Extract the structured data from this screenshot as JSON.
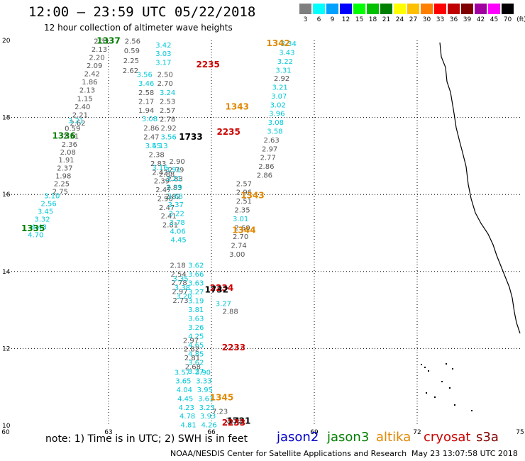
{
  "header": {
    "title": "12:00 – 23:59 UTC 05/22/2018",
    "subtitle": "12 hour collection of altimeter wave heights"
  },
  "color_scale": {
    "unit_label": "(ft)",
    "bins": [
      {
        "label": "3",
        "color": "#7f7f7f"
      },
      {
        "label": "6",
        "color": "#00ffff"
      },
      {
        "label": "9",
        "color": "#00a0ff"
      },
      {
        "label": "12",
        "color": "#0000ff"
      },
      {
        "label": "15",
        "color": "#00ff00"
      },
      {
        "label": "18",
        "color": "#00c000"
      },
      {
        "label": "21",
        "color": "#007f00"
      },
      {
        "label": "24",
        "color": "#ffff00"
      },
      {
        "label": "27",
        "color": "#ffc000"
      },
      {
        "label": "30",
        "color": "#ff8000"
      },
      {
        "label": "33",
        "color": "#ff0000"
      },
      {
        "label": "36",
        "color": "#c00000"
      },
      {
        "label": "39",
        "color": "#800000"
      },
      {
        "label": "42",
        "color": "#a000a0"
      },
      {
        "label": "45",
        "color": "#ff00ff"
      },
      {
        "label": "70",
        "color": "#000000"
      }
    ]
  },
  "map": {
    "lon_ticks": [
      "60",
      "63",
      "66",
      "69",
      "72",
      "75"
    ],
    "lat_ticks": [
      "20",
      "18",
      "16",
      "14",
      "12",
      "10"
    ],
    "lon_range": [
      60,
      75
    ],
    "lat_range": [
      10,
      20
    ],
    "colors": {
      "gray": "#555555",
      "cyan": "#00c8d8",
      "green": "#007f00",
      "red": "#cc0000",
      "orange": "#e08800",
      "black": "#000000",
      "blue": "#0000cc"
    },
    "labels": [
      {
        "text": "1337",
        "lon": 63.0,
        "lat": 19.92,
        "color": "green"
      },
      {
        "text": "1342",
        "lon": 67.95,
        "lat": 19.85,
        "color": "orange"
      },
      {
        "text": "2235",
        "lon": 65.9,
        "lat": 19.3,
        "color": "red"
      },
      {
        "text": "1343",
        "lon": 66.75,
        "lat": 18.2,
        "color": "orange"
      },
      {
        "text": "1336",
        "lon": 61.7,
        "lat": 17.45,
        "color": "green"
      },
      {
        "text": "2235",
        "lon": 66.5,
        "lat": 17.55,
        "color": "red"
      },
      {
        "text": "1733",
        "lon": 65.4,
        "lat": 17.42,
        "color": "black"
      },
      {
        "text": "1343",
        "lon": 67.2,
        "lat": 15.9,
        "color": "orange"
      },
      {
        "text": "1344",
        "lon": 66.95,
        "lat": 15.0,
        "color": "orange"
      },
      {
        "text": "1335",
        "lon": 60.8,
        "lat": 15.05,
        "color": "green"
      },
      {
        "text": "2234",
        "lon": 66.3,
        "lat": 13.5,
        "color": "red"
      },
      {
        "text": "1732",
        "lon": 66.15,
        "lat": 13.45,
        "color": "black"
      },
      {
        "text": "2233",
        "lon": 66.65,
        "lat": 11.95,
        "color": "red"
      },
      {
        "text": "1345",
        "lon": 66.3,
        "lat": 10.65,
        "color": "orange"
      },
      {
        "text": "1731",
        "lon": 66.8,
        "lat": 10.05,
        "color": "black"
      },
      {
        "text": "2233",
        "lon": 66.65,
        "lat": 10.0,
        "color": "red"
      }
    ],
    "tracks": [
      {
        "color": "gray",
        "x0": 62.8,
        "y0": 19.92,
        "dx": -0.07,
        "dy": -0.213,
        "values": [
          "2.31",
          "2.13",
          "2.20",
          "2.09",
          "2.42",
          "1.86",
          "2.13",
          "1.15",
          "2.40",
          "2.21",
          "2.62"
        ]
      },
      {
        "color": "cyan",
        "x0": 62.05,
        "y0": 17.85,
        "dx": 0,
        "dy": 0,
        "values": [
          "3.21"
        ]
      },
      {
        "color": "gray",
        "x0": 61.95,
        "y0": 17.65,
        "dx": -0.045,
        "dy": -0.205,
        "values": [
          "0.59",
          "2.51",
          "2.36",
          "2.08",
          "1.91",
          "2.37",
          "1.98",
          "2.25",
          "2.75"
        ]
      },
      {
        "color": "cyan",
        "x0": 61.35,
        "y0": 15.9,
        "dx": -0.095,
        "dy": -0.203,
        "values": [
          "3.10",
          "2.56",
          "3.45",
          "3.32",
          "4.43",
          "4.70"
        ]
      },
      {
        "color": "gray",
        "x0": 63.7,
        "y0": 19.92,
        "dx": -0.02,
        "dy": -0.255,
        "values": [
          "2.56",
          "0.59",
          "2.25",
          "2.62"
        ]
      },
      {
        "color": "cyan",
        "x0": 64.6,
        "y0": 19.82,
        "dx": 0,
        "dy": -0.228,
        "values": [
          "3.42",
          "3.03",
          "3.17"
        ]
      },
      {
        "color": "cyan",
        "x0": 64.05,
        "y0": 19.05,
        "dx": 0.05,
        "dy": -0.228,
        "values": [
          "3.56",
          "3.46"
        ]
      },
      {
        "color": "gray",
        "x0": 64.65,
        "y0": 19.05,
        "dx": 0,
        "dy": -0.228,
        "values": [
          "2.50",
          "2.70"
        ]
      },
      {
        "color": "gray",
        "x0": 64.1,
        "y0": 18.58,
        "dx": 0,
        "dy": -0.228,
        "values": [
          "2.58",
          "2.17",
          "1.94"
        ]
      },
      {
        "color": "cyan",
        "x0": 64.72,
        "y0": 18.58,
        "dx": 0,
        "dy": 0,
        "values": [
          "3.24"
        ]
      },
      {
        "color": "gray",
        "x0": 64.72,
        "y0": 18.35,
        "dx": 0,
        "dy": -0.228,
        "values": [
          "2.53",
          "2.57",
          "2.78"
        ]
      },
      {
        "color": "cyan",
        "x0": 64.2,
        "y0": 17.9,
        "dx": 0,
        "dy": 0,
        "values": [
          "3.08"
        ]
      },
      {
        "color": "gray",
        "x0": 64.25,
        "y0": 17.66,
        "dx": 0,
        "dy": -0.228,
        "values": [
          "2.86",
          "2.47"
        ]
      },
      {
        "color": "gray",
        "x0": 64.75,
        "y0": 17.66,
        "dx": 0,
        "dy": 0,
        "values": [
          "2.92"
        ]
      },
      {
        "color": "cyan",
        "x0": 64.75,
        "y0": 17.43,
        "dx": 0,
        "dy": 0,
        "values": [
          "3.56"
        ]
      },
      {
        "color": "cyan",
        "x0": 64.3,
        "y0": 17.2,
        "dx": 0.2,
        "dy": 0,
        "values": [
          "3.55",
          "4.13"
        ]
      },
      {
        "color": "gray",
        "x0": 64.4,
        "y0": 16.97,
        "dx": 0.05,
        "dy": -0.228,
        "values": [
          "2.38",
          "2.83",
          "2.42",
          "2.39",
          "2.47",
          "2.90",
          "2.47",
          "2.41",
          "2.81"
        ]
      },
      {
        "color": "gray",
        "x0": 65.0,
        "y0": 16.8,
        "dx": -0.03,
        "dy": -0.228,
        "values": [
          "2.90",
          "2.79",
          "2.83",
          "2.83",
          "2.82"
        ]
      },
      {
        "color": "cyan",
        "x0": 64.88,
        "y0": 16.58,
        "dx": 0.02,
        "dy": -0.228,
        "values": [
          "3.91",
          "3.21",
          "3.39",
          "3.68",
          "3.37",
          "3.22",
          "3.78",
          "4.06",
          "4.45"
        ]
      },
      {
        "color": "gray",
        "x0": 64.7,
        "y0": 16.46,
        "dx": 0,
        "dy": 0,
        "values": [
          "2.88"
        ]
      },
      {
        "color": "cyan",
        "x0": 64.5,
        "y0": 16.64,
        "dx": 0,
        "dy": 0,
        "values": [
          "3.16"
        ]
      },
      {
        "color": "gray",
        "x0": 65.02,
        "y0": 14.1,
        "dx": 0.02,
        "dy": -0.228,
        "values": [
          "2.18",
          "2.54",
          "2.78",
          "2.97",
          "2.73"
        ]
      },
      {
        "color": "cyan",
        "x0": 65.55,
        "y0": 14.1,
        "dx": 0.0,
        "dy": -0.23,
        "values": [
          "3.62",
          "3.66",
          "3.63",
          "3.27",
          "3.19",
          "3.81",
          "3.63",
          "3.26",
          "4.25",
          "4.65",
          "4.85",
          "3.62",
          "3.27"
        ]
      },
      {
        "color": "cyan",
        "x0": 65.1,
        "y0": 13.75,
        "dx": 0.05,
        "dy": -0.228,
        "values": [
          "3.35",
          "3.38",
          "3.20"
        ]
      },
      {
        "color": "cyan",
        "x0": 65.15,
        "y0": 11.32,
        "dx": 0.03,
        "dy": -0.228,
        "values": [
          "3.57",
          "3.65",
          "4.04",
          "4.45",
          "4.23",
          "4.78",
          "4.81"
        ]
      },
      {
        "color": "cyan",
        "x0": 65.75,
        "y0": 11.32,
        "dx": 0.03,
        "dy": -0.228,
        "values": [
          "3.90",
          "3.33",
          "3.95",
          "3.61",
          "3.23",
          "3.93",
          "4.26"
        ]
      },
      {
        "color": "gray",
        "x0": 65.4,
        "y0": 12.15,
        "dx": 0.02,
        "dy": -0.228,
        "values": [
          "2.97",
          "2.82",
          "2.81",
          "2.68"
        ]
      },
      {
        "color": "gray",
        "x0": 66.55,
        "y0": 12.9,
        "dx": 0,
        "dy": 0,
        "values": [
          "2.88"
        ]
      },
      {
        "color": "cyan",
        "x0": 66.35,
        "y0": 13.1,
        "dx": 0,
        "dy": 0,
        "values": [
          "3.27"
        ]
      },
      {
        "color": "gray",
        "x0": 66.25,
        "y0": 10.3,
        "dx": 0.4,
        "dy": -0.228,
        "values": [
          "7.23",
          "7.58"
        ]
      },
      {
        "color": "cyan",
        "x0": 68.25,
        "y0": 19.85,
        "dx": -0.05,
        "dy": -0.228,
        "values": [
          "3.34",
          "3.43",
          "3.22",
          "3.31"
        ]
      },
      {
        "color": "gray",
        "x0": 68.05,
        "y0": 18.95,
        "dx": 0,
        "dy": 0,
        "values": [
          "2.92"
        ]
      },
      {
        "color": "cyan",
        "x0": 68.0,
        "y0": 18.72,
        "dx": -0.03,
        "dy": -0.228,
        "values": [
          "3.21",
          "3.07",
          "3.02",
          "3.96",
          "3.08",
          "3.58"
        ]
      },
      {
        "color": "gray",
        "x0": 67.75,
        "y0": 17.35,
        "dx": -0.05,
        "dy": -0.228,
        "values": [
          "2.63",
          "2.97",
          "2.77",
          "2.86",
          "2.86"
        ]
      },
      {
        "color": "gray",
        "x0": 66.95,
        "y0": 16.22,
        "dx": 0,
        "dy": -0.228,
        "values": [
          "2.57",
          "2.96"
        ]
      },
      {
        "color": "gray",
        "x0": 66.95,
        "y0": 15.76,
        "dx": -0.05,
        "dy": -0.228,
        "values": [
          "2.51",
          "2.35"
        ]
      },
      {
        "color": "cyan",
        "x0": 66.85,
        "y0": 15.3,
        "dx": 0,
        "dy": 0,
        "values": [
          "3.01"
        ]
      },
      {
        "color": "gray",
        "x0": 66.9,
        "y0": 15.07,
        "dx": -0.05,
        "dy": -0.228,
        "values": [
          "2.60",
          "2.70",
          "2.74",
          "3.00"
        ]
      }
    ]
  },
  "footer": {
    "note": "note:  1) Time is in UTC;  2) SWH is in feet",
    "legend": [
      {
        "name": "jason2",
        "color": "#0000cc"
      },
      {
        "name": "jason3",
        "color": "#007f00"
      },
      {
        "name": "altika",
        "color": "#e08800"
      },
      {
        "name": "cryosat",
        "color": "#cc0000"
      },
      {
        "name": "s3a",
        "color": "#800000"
      }
    ],
    "credit": "NOAA/NESDIS Center for Satellite Applications and Research",
    "timestamp": "May 23 13:07:58 UTC 2018"
  }
}
